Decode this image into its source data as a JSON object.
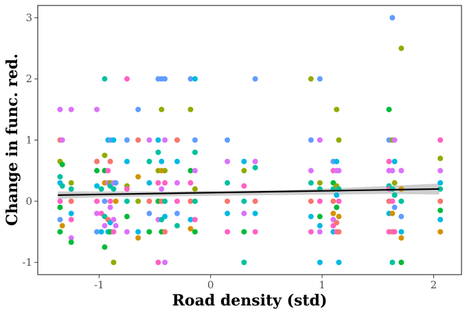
{
  "chart_data": {
    "type": "scatter",
    "title": "",
    "xlabel": "Road density (std)",
    "ylabel": "Change in func. red.",
    "xlim": [
      -1.55,
      2.25
    ],
    "ylim": [
      -1.2,
      3.2
    ],
    "xticks": [
      -1,
      0,
      1,
      2
    ],
    "yticks": [
      -1,
      0,
      1,
      2,
      3
    ],
    "grid": false,
    "legend": "none",
    "colors": [
      "#f8766d",
      "#ff61c3",
      "#db72fb",
      "#93aa00",
      "#00ba38",
      "#00c19f",
      "#00b9e3",
      "#619cff",
      "#d39200",
      "#dc71fa"
    ],
    "points": [
      [
        -1.35,
        1.5,
        2
      ],
      [
        -1.35,
        1.0,
        0
      ],
      [
        -1.35,
        0.65,
        3
      ],
      [
        -1.35,
        0.4,
        5
      ],
      [
        -1.35,
        0.3,
        6
      ],
      [
        -1.35,
        0.0,
        1
      ],
      [
        -1.35,
        -0.1,
        4
      ],
      [
        -1.35,
        -0.3,
        7
      ],
      [
        -1.35,
        -0.5,
        4
      ],
      [
        -1.33,
        1.0,
        2
      ],
      [
        -1.33,
        0.6,
        4
      ],
      [
        -1.33,
        0.25,
        5
      ],
      [
        -1.33,
        -0.4,
        8
      ],
      [
        -1.25,
        1.5,
        2
      ],
      [
        -1.25,
        0.3,
        3
      ],
      [
        -1.25,
        0.2,
        5
      ],
      [
        -1.25,
        0.0,
        0
      ],
      [
        -1.25,
        -0.2,
        6
      ],
      [
        -1.25,
        -0.3,
        1
      ],
      [
        -1.25,
        -0.6,
        2
      ],
      [
        -1.25,
        -0.67,
        4
      ],
      [
        -1.02,
        1.5,
        2
      ],
      [
        -1.02,
        0.65,
        0
      ],
      [
        -1.02,
        0.5,
        4
      ],
      [
        -1.02,
        0.25,
        6
      ],
      [
        -1.02,
        0.0,
        1
      ],
      [
        -1.02,
        -0.2,
        9
      ],
      [
        -1.02,
        -0.5,
        7
      ],
      [
        -0.98,
        0.2,
        5
      ],
      [
        -0.98,
        -0.2,
        1
      ],
      [
        -0.98,
        -0.5,
        6
      ],
      [
        -0.95,
        2.0,
        5
      ],
      [
        -0.95,
        0.75,
        3
      ],
      [
        -0.95,
        0.5,
        4
      ],
      [
        -0.95,
        0.3,
        8
      ],
      [
        -0.95,
        0.0,
        7
      ],
      [
        -0.95,
        -0.25,
        5
      ],
      [
        -0.95,
        -0.4,
        2
      ],
      [
        -0.95,
        -0.75,
        4
      ],
      [
        -0.92,
        1.0,
        6
      ],
      [
        -0.92,
        0.5,
        1
      ],
      [
        -0.92,
        0.3,
        9
      ],
      [
        -0.92,
        -0.3,
        0
      ],
      [
        -0.92,
        -0.5,
        6
      ],
      [
        -0.9,
        1.0,
        7
      ],
      [
        -0.9,
        0.65,
        0
      ],
      [
        -0.9,
        0.3,
        3
      ],
      [
        -0.9,
        0.25,
        5
      ],
      [
        -0.9,
        0.0,
        1
      ],
      [
        -0.9,
        -0.1,
        2
      ],
      [
        -0.9,
        -0.35,
        6
      ],
      [
        -0.9,
        -0.5,
        4
      ],
      [
        -0.87,
        1.0,
        6
      ],
      [
        -0.87,
        0.3,
        2
      ],
      [
        -0.87,
        0.2,
        5
      ],
      [
        -0.87,
        -0.3,
        9
      ],
      [
        -0.87,
        -0.5,
        1
      ],
      [
        -0.87,
        -1.0,
        3
      ],
      [
        -0.85,
        0.3,
        7
      ],
      [
        -0.85,
        0.0,
        8
      ],
      [
        -0.85,
        -0.4,
        2
      ],
      [
        -0.75,
        2.0,
        1
      ],
      [
        -0.75,
        1.0,
        7
      ],
      [
        -0.75,
        0.65,
        6
      ],
      [
        -0.75,
        0.25,
        3
      ],
      [
        -0.75,
        0.2,
        1
      ],
      [
        -0.75,
        0.0,
        5
      ],
      [
        -0.75,
        -0.25,
        4
      ],
      [
        -0.75,
        -0.5,
        2
      ],
      [
        -0.65,
        1.5,
        7
      ],
      [
        -0.65,
        1.0,
        0
      ],
      [
        -0.65,
        0.4,
        8
      ],
      [
        -0.65,
        0.0,
        3
      ],
      [
        -0.65,
        -0.5,
        6
      ],
      [
        -0.65,
        -0.6,
        8
      ],
      [
        -0.55,
        1.0,
        2
      ],
      [
        -0.55,
        0.65,
        5
      ],
      [
        -0.55,
        0.3,
        6
      ],
      [
        -0.55,
        0.0,
        0
      ],
      [
        -0.55,
        -0.2,
        7
      ],
      [
        -0.55,
        -0.5,
        4
      ],
      [
        -0.47,
        2.0,
        7
      ],
      [
        -0.47,
        1.0,
        6
      ],
      [
        -0.47,
        0.8,
        5
      ],
      [
        -0.47,
        0.5,
        3
      ],
      [
        -0.47,
        0.3,
        1
      ],
      [
        -0.47,
        0.0,
        4
      ],
      [
        -0.47,
        -0.3,
        2
      ],
      [
        -0.47,
        -1.0,
        1
      ],
      [
        -0.44,
        2.0,
        7
      ],
      [
        -0.44,
        1.5,
        3
      ],
      [
        -0.44,
        0.65,
        6
      ],
      [
        -0.44,
        0.5,
        8
      ],
      [
        -0.44,
        0.2,
        2
      ],
      [
        -0.44,
        0.0,
        0
      ],
      [
        -0.44,
        -0.3,
        5
      ],
      [
        -0.44,
        -0.5,
        4
      ],
      [
        -0.41,
        2.0,
        7
      ],
      [
        -0.41,
        1.0,
        2
      ],
      [
        -0.41,
        0.5,
        3
      ],
      [
        -0.41,
        0.3,
        1
      ],
      [
        -0.41,
        0.0,
        5
      ],
      [
        -0.41,
        -0.25,
        6
      ],
      [
        -0.41,
        -0.5,
        0
      ],
      [
        -0.41,
        -1.0,
        2
      ],
      [
        -0.3,
        1.0,
        0
      ],
      [
        -0.3,
        0.65,
        6
      ],
      [
        -0.3,
        0.3,
        2
      ],
      [
        -0.3,
        0.0,
        1
      ],
      [
        -0.3,
        -0.2,
        7
      ],
      [
        -0.3,
        -0.4,
        5
      ],
      [
        -0.18,
        2.0,
        7
      ],
      [
        -0.18,
        1.5,
        3
      ],
      [
        -0.18,
        0.5,
        4
      ],
      [
        -0.18,
        0.3,
        1
      ],
      [
        -0.18,
        0.0,
        0
      ],
      [
        -0.18,
        -0.3,
        6
      ],
      [
        -0.18,
        -0.45,
        8
      ],
      [
        -0.14,
        2.0,
        6
      ],
      [
        -0.14,
        1.0,
        7
      ],
      [
        -0.14,
        0.8,
        5
      ],
      [
        -0.14,
        0.5,
        2
      ],
      [
        -0.14,
        0.2,
        3
      ],
      [
        -0.14,
        0.0,
        5
      ],
      [
        -0.14,
        -0.3,
        1
      ],
      [
        -0.14,
        -0.5,
        4
      ],
      [
        0.15,
        1.0,
        7
      ],
      [
        0.15,
        0.65,
        2
      ],
      [
        0.15,
        0.3,
        5
      ],
      [
        0.15,
        0.0,
        0
      ],
      [
        0.15,
        -0.2,
        6
      ],
      [
        0.15,
        -0.5,
        1
      ],
      [
        0.3,
        0.65,
        6
      ],
      [
        0.3,
        0.5,
        3
      ],
      [
        0.3,
        0.25,
        1
      ],
      [
        0.3,
        0.0,
        5
      ],
      [
        0.3,
        -0.2,
        2
      ],
      [
        0.3,
        -0.5,
        4
      ],
      [
        0.3,
        -1.0,
        5
      ],
      [
        0.4,
        2.0,
        7
      ],
      [
        0.4,
        0.65,
        2
      ],
      [
        0.4,
        0.55,
        5
      ],
      [
        0.4,
        0.0,
        0
      ],
      [
        0.4,
        -0.2,
        6
      ],
      [
        0.4,
        -0.5,
        1
      ],
      [
        0.9,
        2.0,
        3
      ],
      [
        0.9,
        1.0,
        7
      ],
      [
        0.9,
        0.5,
        2
      ],
      [
        0.9,
        0.3,
        5
      ],
      [
        0.9,
        0.0,
        0
      ],
      [
        0.9,
        -0.25,
        6
      ],
      [
        0.9,
        -0.5,
        1
      ],
      [
        0.98,
        2.0,
        7
      ],
      [
        0.98,
        1.0,
        2
      ],
      [
        0.98,
        0.3,
        3
      ],
      [
        0.98,
        0.2,
        5
      ],
      [
        0.98,
        0.0,
        1
      ],
      [
        0.98,
        -0.25,
        4
      ],
      [
        0.98,
        -0.4,
        6
      ],
      [
        0.98,
        -0.5,
        2
      ],
      [
        0.98,
        -1.0,
        6
      ],
      [
        1.1,
        0.65,
        7
      ],
      [
        1.1,
        0.5,
        1
      ],
      [
        1.1,
        0.3,
        4
      ],
      [
        1.1,
        0.2,
        5
      ],
      [
        1.1,
        0.0,
        0
      ],
      [
        1.1,
        -0.2,
        8
      ],
      [
        1.1,
        -0.3,
        2
      ],
      [
        1.1,
        -0.4,
        1
      ],
      [
        1.1,
        -0.5,
        6
      ],
      [
        1.13,
        1.5,
        3
      ],
      [
        1.13,
        0.65,
        6
      ],
      [
        1.13,
        0.5,
        2
      ],
      [
        1.13,
        0.25,
        3
      ],
      [
        1.13,
        0.1,
        6
      ],
      [
        1.13,
        -0.1,
        4
      ],
      [
        1.13,
        -0.35,
        0
      ],
      [
        1.13,
        -0.5,
        1
      ],
      [
        1.15,
        1.0,
        3
      ],
      [
        1.15,
        0.5,
        2
      ],
      [
        1.15,
        0.2,
        5
      ],
      [
        1.15,
        0.0,
        1
      ],
      [
        1.15,
        -0.25,
        8
      ],
      [
        1.15,
        -0.5,
        0
      ],
      [
        1.15,
        -1.0,
        6
      ],
      [
        1.6,
        1.5,
        4
      ],
      [
        1.6,
        1.0,
        7
      ],
      [
        1.6,
        0.65,
        1
      ],
      [
        1.6,
        0.5,
        9
      ],
      [
        1.6,
        0.25,
        5
      ],
      [
        1.6,
        0.2,
        1
      ],
      [
        1.6,
        0.0,
        0
      ],
      [
        1.6,
        -0.2,
        6
      ],
      [
        1.6,
        -0.5,
        1
      ],
      [
        1.63,
        3.0,
        7
      ],
      [
        1.63,
        1.0,
        3
      ],
      [
        1.63,
        0.5,
        2
      ],
      [
        1.63,
        0.2,
        5
      ],
      [
        1.63,
        0.0,
        1
      ],
      [
        1.63,
        -0.2,
        8
      ],
      [
        1.63,
        -0.5,
        0
      ],
      [
        1.63,
        -1.0,
        5
      ],
      [
        1.65,
        1.0,
        2
      ],
      [
        1.65,
        0.65,
        6
      ],
      [
        1.65,
        0.3,
        3
      ],
      [
        1.65,
        0.1,
        5
      ],
      [
        1.65,
        -0.1,
        7
      ],
      [
        1.65,
        -0.5,
        1
      ],
      [
        1.71,
        2.5,
        3
      ],
      [
        1.71,
        0.5,
        2
      ],
      [
        1.71,
        0.2,
        8
      ],
      [
        1.71,
        0.0,
        5
      ],
      [
        1.71,
        -0.25,
        7
      ],
      [
        1.71,
        -0.5,
        6
      ],
      [
        1.71,
        -0.6,
        8
      ],
      [
        1.71,
        -1.0,
        4
      ],
      [
        2.06,
        1.0,
        1
      ],
      [
        2.06,
        0.7,
        3
      ],
      [
        2.06,
        0.5,
        2
      ],
      [
        2.06,
        0.3,
        6
      ],
      [
        2.06,
        0.2,
        5
      ],
      [
        2.06,
        0.0,
        0
      ],
      [
        2.06,
        -0.15,
        4
      ],
      [
        2.06,
        -0.3,
        6
      ],
      [
        2.06,
        -0.5,
        8
      ]
    ],
    "trend": {
      "x": [
        -1.37,
        2.05
      ],
      "y": [
        0.1,
        0.2
      ]
    },
    "ci_band": {
      "x": [
        -1.37,
        -0.9,
        -0.4,
        0.1,
        0.6,
        1.1,
        1.6,
        2.05
      ],
      "upper": [
        0.16,
        0.16,
        0.16,
        0.17,
        0.18,
        0.21,
        0.25,
        0.29
      ],
      "lower": [
        0.04,
        0.07,
        0.08,
        0.09,
        0.1,
        0.11,
        0.12,
        0.11
      ]
    }
  }
}
